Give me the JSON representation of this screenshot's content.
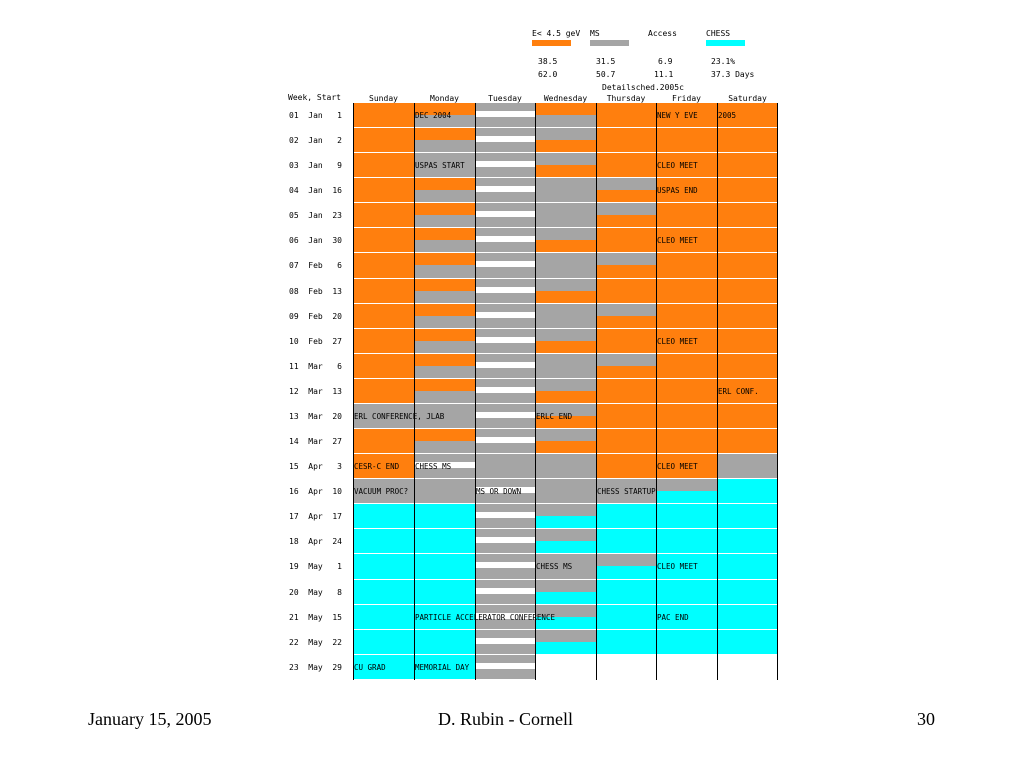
{
  "colors": {
    "orange": "#ff7f0e",
    "gray": "#a5a5a5",
    "cyan": "#00ffff",
    "white": "#ffffff"
  },
  "legend": {
    "items": [
      {
        "label": "E< 4.5 geV",
        "color": "#ff7f0e"
      },
      {
        "label": "MS",
        "color": "#a5a5a5"
      },
      {
        "label": "Access",
        "color": ""
      },
      {
        "label": "CHESS",
        "color": "#00ffff"
      }
    ],
    "row1": [
      "38.5",
      "31.5",
      "6.9",
      "23.1%"
    ],
    "row2": [
      "62.0",
      "50.7",
      "11.1",
      "37.3 Days"
    ],
    "filename": "Detailsched.2005c"
  },
  "header": {
    "week_start": "Week, Start",
    "days": [
      "Sunday",
      "Monday",
      "Tuesday",
      "Wednesday",
      "Thursday",
      "Friday",
      "Saturday"
    ]
  },
  "weeks": [
    "01  Jan   1",
    "02  Jan   2",
    "03  Jan   9",
    "04  Jan  16",
    "05  Jan  23",
    "06  Jan  30",
    "07  Feb   6",
    "08  Feb  13",
    "09  Feb  20",
    "10  Feb  27",
    "11  Mar   6",
    "12  Mar  13",
    "13  Mar  20",
    "14  Mar  27",
    "15  Apr   3",
    "16  Apr  10",
    "17  Apr  17",
    "18  Apr  24",
    "19  May   1",
    "20  May   8",
    "21  May  15",
    "22  May  22",
    "23  May  29"
  ],
  "schedule": [
    [
      "O",
      "O/G",
      "W",
      "O/G",
      "O",
      "O",
      "O"
    ],
    [
      "O",
      "O/G",
      "W",
      "G/O",
      "O",
      "O",
      "O"
    ],
    [
      "O",
      "G",
      "W",
      "G/O",
      "O",
      "O",
      "O"
    ],
    [
      "O",
      "O/G",
      "W",
      "G",
      "G/O",
      "O",
      "O"
    ],
    [
      "O",
      "O/G",
      "W",
      "G",
      "G/O",
      "O",
      "O"
    ],
    [
      "O",
      "O/G",
      "W",
      "G/O",
      "O",
      "O",
      "O"
    ],
    [
      "O",
      "O/G",
      "W",
      "G",
      "G/O",
      "O",
      "O"
    ],
    [
      "O",
      "O/G",
      "W",
      "G/O",
      "O",
      "O",
      "O"
    ],
    [
      "O",
      "O/G",
      "W",
      "G",
      "G/O",
      "O",
      "O"
    ],
    [
      "O",
      "O/G",
      "W",
      "G/O",
      "O",
      "O",
      "O"
    ],
    [
      "O",
      "O/G",
      "W",
      "G",
      "G/O",
      "O",
      "O"
    ],
    [
      "O",
      "O/G",
      "W",
      "G/O",
      "O",
      "O",
      "O"
    ],
    [
      "G",
      "G",
      "W",
      "G/O",
      "O",
      "O",
      "O"
    ],
    [
      "O",
      "O/G",
      "W",
      "G/O",
      "O",
      "O",
      "O"
    ],
    [
      "O",
      "W",
      "G",
      "G",
      "O",
      "O",
      "G"
    ],
    [
      "G",
      "G",
      "W",
      "G",
      "G",
      "G/C",
      "C"
    ],
    [
      "C",
      "C",
      "W",
      "G/C",
      "C",
      "C",
      "C"
    ],
    [
      "C",
      "C",
      "W",
      "G/C",
      "C",
      "C",
      "C"
    ],
    [
      "C",
      "C",
      "W",
      "G",
      "G/C",
      "C",
      "C"
    ],
    [
      "C",
      "C",
      "W",
      "G/C",
      "C",
      "C",
      "C"
    ],
    [
      "C",
      "C",
      "W",
      "G/C",
      "C",
      "C",
      "C"
    ],
    [
      "C",
      "C",
      "W",
      "G/C",
      "C",
      "C",
      "C"
    ],
    [
      "C",
      "C",
      "W",
      "",
      "",
      "",
      ""
    ]
  ],
  "events": [
    {
      "row": 0,
      "col": 1,
      "text": "DEC 2004"
    },
    {
      "row": 0,
      "col": 5,
      "text": "NEW Y EVE"
    },
    {
      "row": 0,
      "col": 6,
      "text": "2005"
    },
    {
      "row": 2,
      "col": 1,
      "text": "USPAS START"
    },
    {
      "row": 2,
      "col": 5,
      "text": "CLEO MEET"
    },
    {
      "row": 3,
      "col": 5,
      "text": "USPAS END"
    },
    {
      "row": 5,
      "col": 5,
      "text": "CLEO MEET"
    },
    {
      "row": 9,
      "col": 5,
      "text": "CLEO MEET"
    },
    {
      "row": 11,
      "col": 6,
      "text": "ERL CONF."
    },
    {
      "row": 12,
      "col": 0,
      "text": "ERL CONFERENCE, JLAB"
    },
    {
      "row": 12,
      "col": 3,
      "text": "ERLC END"
    },
    {
      "row": 14,
      "col": 0,
      "text": "CESR-C END"
    },
    {
      "row": 14,
      "col": 1,
      "text": "CHESS MS"
    },
    {
      "row": 14,
      "col": 5,
      "text": "CLEO MEET"
    },
    {
      "row": 15,
      "col": 0,
      "text": "VACUUM PROC?"
    },
    {
      "row": 15,
      "col": 2,
      "text": "MS OR DOWN"
    },
    {
      "row": 15,
      "col": 4,
      "text": "CHESS STARTUP"
    },
    {
      "row": 18,
      "col": 3,
      "text": "CHESS MS"
    },
    {
      "row": 18,
      "col": 5,
      "text": "CLEO MEET"
    },
    {
      "row": 20,
      "col": 1,
      "text": "PARTICLE ACCELERATOR CONFERENCE"
    },
    {
      "row": 20,
      "col": 5,
      "text": "PAC END"
    },
    {
      "row": 22,
      "col": 0,
      "text": "CU GRAD"
    },
    {
      "row": 22,
      "col": 1,
      "text": "MEMORIAL DAY"
    }
  ],
  "footer": {
    "left": "January 15, 2005",
    "center": "D. Rubin - Cornell",
    "right": "30"
  }
}
